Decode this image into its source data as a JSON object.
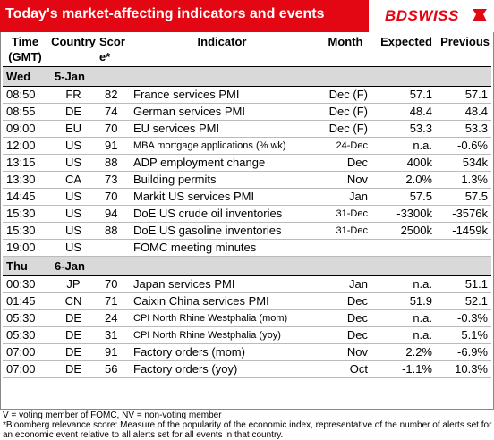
{
  "header": {
    "title": "Today's market-affecting indicators and events",
    "logo": "BDSWISS",
    "brand_color": "#e30613"
  },
  "columns": {
    "time": "Time (GMT)",
    "country": "Country",
    "score": "Score*",
    "indicator": "Indicator",
    "month": "Month",
    "expected": "Expected",
    "previous": "Previous"
  },
  "days": [
    {
      "day": "Wed",
      "date": "5-Jan",
      "rows": [
        {
          "time": "08:50",
          "country": "FR",
          "score": "82",
          "indicator": "France services PMI",
          "month": "Dec (F)",
          "expected": "57.1",
          "previous": "57.1"
        },
        {
          "time": "08:55",
          "country": "DE",
          "score": "74",
          "indicator": "German services PMI",
          "month": "Dec (F)",
          "expected": "48.4",
          "previous": "48.4"
        },
        {
          "time": "09:00",
          "country": "EU",
          "score": "70",
          "indicator": "EU services PMI",
          "month": "Dec (F)",
          "expected": "53.3",
          "previous": "53.3"
        },
        {
          "time": "12:00",
          "country": "US",
          "score": "91",
          "indicator": "MBA mortgage applications (% wk)",
          "month": "24-Dec",
          "expected": "n.a.",
          "previous": "-0.6%"
        },
        {
          "time": "13:15",
          "country": "US",
          "score": "88",
          "indicator": "ADP employment change",
          "month": "Dec",
          "expected": "400k",
          "previous": "534k"
        },
        {
          "time": "13:30",
          "country": "CA",
          "score": "73",
          "indicator": "Building permits",
          "month": "Nov",
          "expected": "2.0%",
          "previous": "1.3%"
        },
        {
          "time": "14:45",
          "country": "US",
          "score": "70",
          "indicator": "Markit US services PMI",
          "month": "Jan",
          "expected": "57.5",
          "previous": "57.5"
        },
        {
          "time": "15:30",
          "country": "US",
          "score": "94",
          "indicator": "DoE US crude oil inventories",
          "month": "31-Dec",
          "expected": "-3300k",
          "previous": "-3576k"
        },
        {
          "time": "15:30",
          "country": "US",
          "score": "88",
          "indicator": "DoE US gasoline inventories",
          "month": "31-Dec",
          "expected": "2500k",
          "previous": "-1459k"
        },
        {
          "time": "19:00",
          "country": "US",
          "score": "",
          "indicator": "FOMC meeting minutes",
          "month": "",
          "expected": "",
          "previous": ""
        }
      ]
    },
    {
      "day": "Thu",
      "date": "6-Jan",
      "rows": [
        {
          "time": "00:30",
          "country": "JP",
          "score": "70",
          "indicator": "Japan services PMI",
          "month": "Jan",
          "expected": "n.a.",
          "previous": "51.1"
        },
        {
          "time": "01:45",
          "country": "CN",
          "score": "71",
          "indicator": "Caixin China services PMI",
          "month": "Dec",
          "expected": "51.9",
          "previous": "52.1"
        },
        {
          "time": "05:30",
          "country": "DE",
          "score": "24",
          "indicator": "CPI North Rhine Westphalia (mom)",
          "month": "Dec",
          "expected": "n.a.",
          "previous": "-0.3%"
        },
        {
          "time": "05:30",
          "country": "DE",
          "score": "31",
          "indicator": "CPI North Rhine Westphalia (yoy)",
          "month": "Dec",
          "expected": "n.a.",
          "previous": "5.1%"
        },
        {
          "time": "07:00",
          "country": "DE",
          "score": "91",
          "indicator": "Factory orders (mom)",
          "month": "Nov",
          "expected": "2.2%",
          "previous": "-6.9%"
        },
        {
          "time": "07:00",
          "country": "DE",
          "score": "56",
          "indicator": "Factory orders (yoy)",
          "month": "Oct",
          "expected": "-1.1%",
          "previous": "10.3%"
        }
      ]
    }
  ],
  "footnotes": [
    "V = voting member of FOMC, NV = non-voting member",
    "*Bloomberg relevance score:  Measure of the popularity of the economic index, representative of the number of alerts set for an economic event relative to all alerts set for all events in that country."
  ]
}
